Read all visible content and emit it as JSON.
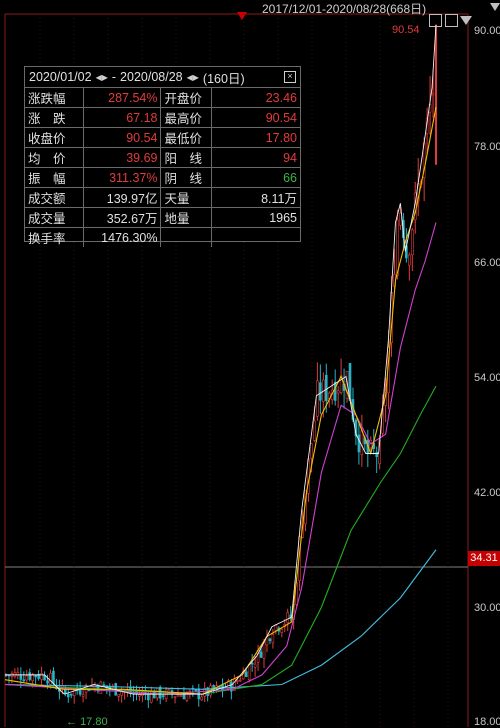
{
  "header": {
    "date_range": "2017/12/01-2020/08/28(668日)"
  },
  "peak_label": "90.54",
  "low_label": "17.80",
  "current_price": "34.31",
  "y_ticks": [
    "90.00",
    "78.00",
    "66.00",
    "54.00",
    "42.00",
    "30.00",
    "18.00"
  ],
  "stats": {
    "start_date": "2020/01/02",
    "end_date": "2020/08/28",
    "dash": "-",
    "period": "(160日)",
    "rows": [
      [
        {
          "k": "涨跌幅",
          "v": "287.54%",
          "c": "red"
        },
        {
          "k": "开盘价",
          "v": "23.46",
          "c": "red"
        }
      ],
      [
        {
          "k": "涨　跌",
          "v": "67.18",
          "c": "red"
        },
        {
          "k": "最高价",
          "v": "90.54",
          "c": "red"
        }
      ],
      [
        {
          "k": "收盘价",
          "v": "90.54",
          "c": "red"
        },
        {
          "k": "最低价",
          "v": "17.80",
          "c": "red"
        }
      ],
      [
        {
          "k": "均　价",
          "v": "39.69",
          "c": "red"
        },
        {
          "k": "阳　线",
          "v": "94",
          "c": "red"
        }
      ],
      [
        {
          "k": "振　幅",
          "v": "311.37%",
          "c": "red"
        },
        {
          "k": "阴　线",
          "v": "66",
          "c": "green"
        }
      ],
      [
        {
          "k": "成交额",
          "v": "139.97亿",
          "c": "white"
        },
        {
          "k": "天量",
          "v": "8.11万",
          "c": "white"
        }
      ],
      [
        {
          "k": "成交量",
          "v": "352.67万",
          "c": "white"
        },
        {
          "k": "地量",
          "v": "1965",
          "c": "white"
        }
      ],
      [
        {
          "k": "换手率",
          "v": "1476.30%",
          "c": "white"
        },
        {
          "k": "",
          "v": "",
          "c": "white"
        }
      ]
    ]
  },
  "colors": {
    "red": "#e03c3c",
    "green": "#3cb44b",
    "white": "#e0e0e0",
    "up": "#e03c3c",
    "down": "#22b5c8",
    "ma5": "#f0f0f0",
    "ma10": "#f0c000",
    "ma20": "#d040d0",
    "ma60": "#20b020",
    "ma120": "#40c0e0"
  },
  "chart_data": {
    "type": "candlestick",
    "ylim": [
      18,
      92
    ],
    "close_path": [
      [
        0,
        23
      ],
      [
        40,
        23
      ],
      [
        60,
        21
      ],
      [
        90,
        22
      ],
      [
        130,
        21
      ],
      [
        160,
        21
      ],
      [
        200,
        21
      ],
      [
        230,
        22
      ],
      [
        255,
        25
      ],
      [
        270,
        28
      ],
      [
        290,
        29
      ],
      [
        300,
        40
      ],
      [
        315,
        52
      ],
      [
        330,
        53
      ],
      [
        345,
        54
      ],
      [
        355,
        48
      ],
      [
        365,
        46
      ],
      [
        378,
        46
      ],
      [
        388,
        58
      ],
      [
        395,
        70
      ],
      [
        400,
        72
      ],
      [
        405,
        67
      ],
      [
        415,
        72
      ],
      [
        425,
        79
      ],
      [
        432,
        84
      ],
      [
        436,
        90.54
      ]
    ],
    "ma10_path": [
      [
        0,
        22.5
      ],
      [
        60,
        21.5
      ],
      [
        120,
        21.5
      ],
      [
        200,
        21
      ],
      [
        240,
        23
      ],
      [
        265,
        27
      ],
      [
        290,
        28.5
      ],
      [
        305,
        42
      ],
      [
        320,
        50
      ],
      [
        340,
        54
      ],
      [
        355,
        50
      ],
      [
        370,
        46
      ],
      [
        385,
        52
      ],
      [
        395,
        64
      ],
      [
        405,
        68
      ],
      [
        415,
        71
      ],
      [
        425,
        76
      ],
      [
        436,
        82
      ]
    ],
    "ma20_path": [
      [
        0,
        22
      ],
      [
        80,
        21.5
      ],
      [
        160,
        21
      ],
      [
        230,
        21.5
      ],
      [
        260,
        23
      ],
      [
        285,
        26
      ],
      [
        300,
        32
      ],
      [
        320,
        44
      ],
      [
        340,
        51
      ],
      [
        355,
        50
      ],
      [
        370,
        47
      ],
      [
        385,
        48
      ],
      [
        400,
        57
      ],
      [
        415,
        63
      ],
      [
        425,
        66
      ],
      [
        436,
        70
      ]
    ],
    "ma60_path": [
      [
        0,
        22
      ],
      [
        100,
        21.5
      ],
      [
        200,
        21
      ],
      [
        260,
        22
      ],
      [
        290,
        24
      ],
      [
        320,
        30
      ],
      [
        350,
        38
      ],
      [
        380,
        43
      ],
      [
        400,
        46
      ],
      [
        420,
        50
      ],
      [
        436,
        53
      ]
    ],
    "ma120_path": [
      [
        0,
        22
      ],
      [
        100,
        21.8
      ],
      [
        200,
        21.5
      ],
      [
        280,
        22
      ],
      [
        320,
        24
      ],
      [
        360,
        27
      ],
      [
        400,
        31
      ],
      [
        436,
        36
      ]
    ]
  }
}
